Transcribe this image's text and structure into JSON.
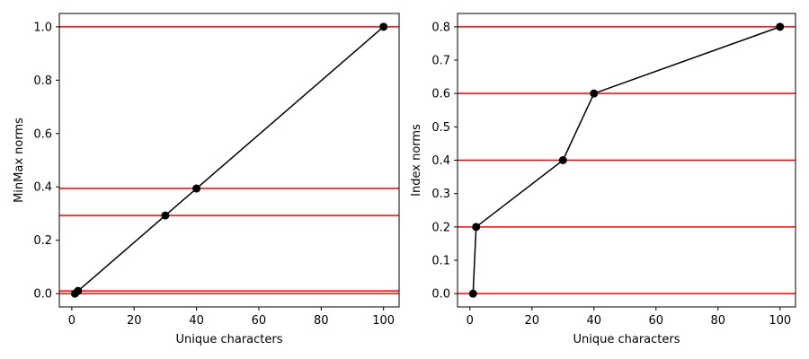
{
  "colors": {
    "series_line": "#000000",
    "markers": "#000000",
    "reference_lines": "#ff0000",
    "axes": "#000000",
    "background": "#ffffff"
  },
  "chart_data": [
    {
      "type": "line",
      "xlabel": "Unique characters",
      "ylabel": "MinMax norms",
      "xlim": [
        -4,
        105
      ],
      "ylim": [
        -0.05,
        1.05
      ],
      "xticks": [
        0,
        20,
        40,
        60,
        80,
        100
      ],
      "xtick_labels": [
        "0",
        "20",
        "40",
        "60",
        "80",
        "100"
      ],
      "yticks": [
        0.0,
        0.2,
        0.4,
        0.6,
        0.8,
        1.0
      ],
      "ytick_labels": [
        "0.0",
        "0.2",
        "0.4",
        "0.6",
        "0.8",
        "1.0"
      ],
      "grid": false,
      "series": [
        {
          "x": [
            1,
            2,
            30,
            40,
            100
          ],
          "y": [
            0.0,
            0.0101,
            0.2929,
            0.3939,
            1.0
          ],
          "marker": "circle"
        }
      ],
      "hlines": [
        0.0,
        0.0101,
        0.2929,
        0.3939,
        1.0
      ]
    },
    {
      "type": "line",
      "xlabel": "Unique characters",
      "ylabel": "Index norms",
      "xlim": [
        -4,
        105
      ],
      "ylim": [
        -0.04,
        0.84
      ],
      "xticks": [
        0,
        20,
        40,
        60,
        80,
        100
      ],
      "xtick_labels": [
        "0",
        "20",
        "40",
        "60",
        "80",
        "100"
      ],
      "yticks": [
        0.0,
        0.1,
        0.2,
        0.3,
        0.4,
        0.5,
        0.6,
        0.7,
        0.8
      ],
      "ytick_labels": [
        "0.0",
        "0.1",
        "0.2",
        "0.3",
        "0.4",
        "0.5",
        "0.6",
        "0.7",
        "0.8"
      ],
      "grid": false,
      "series": [
        {
          "x": [
            1,
            2,
            30,
            40,
            100
          ],
          "y": [
            0.0,
            0.2,
            0.4,
            0.6,
            0.8
          ],
          "marker": "circle"
        }
      ],
      "hlines": [
        0.0,
        0.2,
        0.4,
        0.6,
        0.8
      ]
    }
  ]
}
